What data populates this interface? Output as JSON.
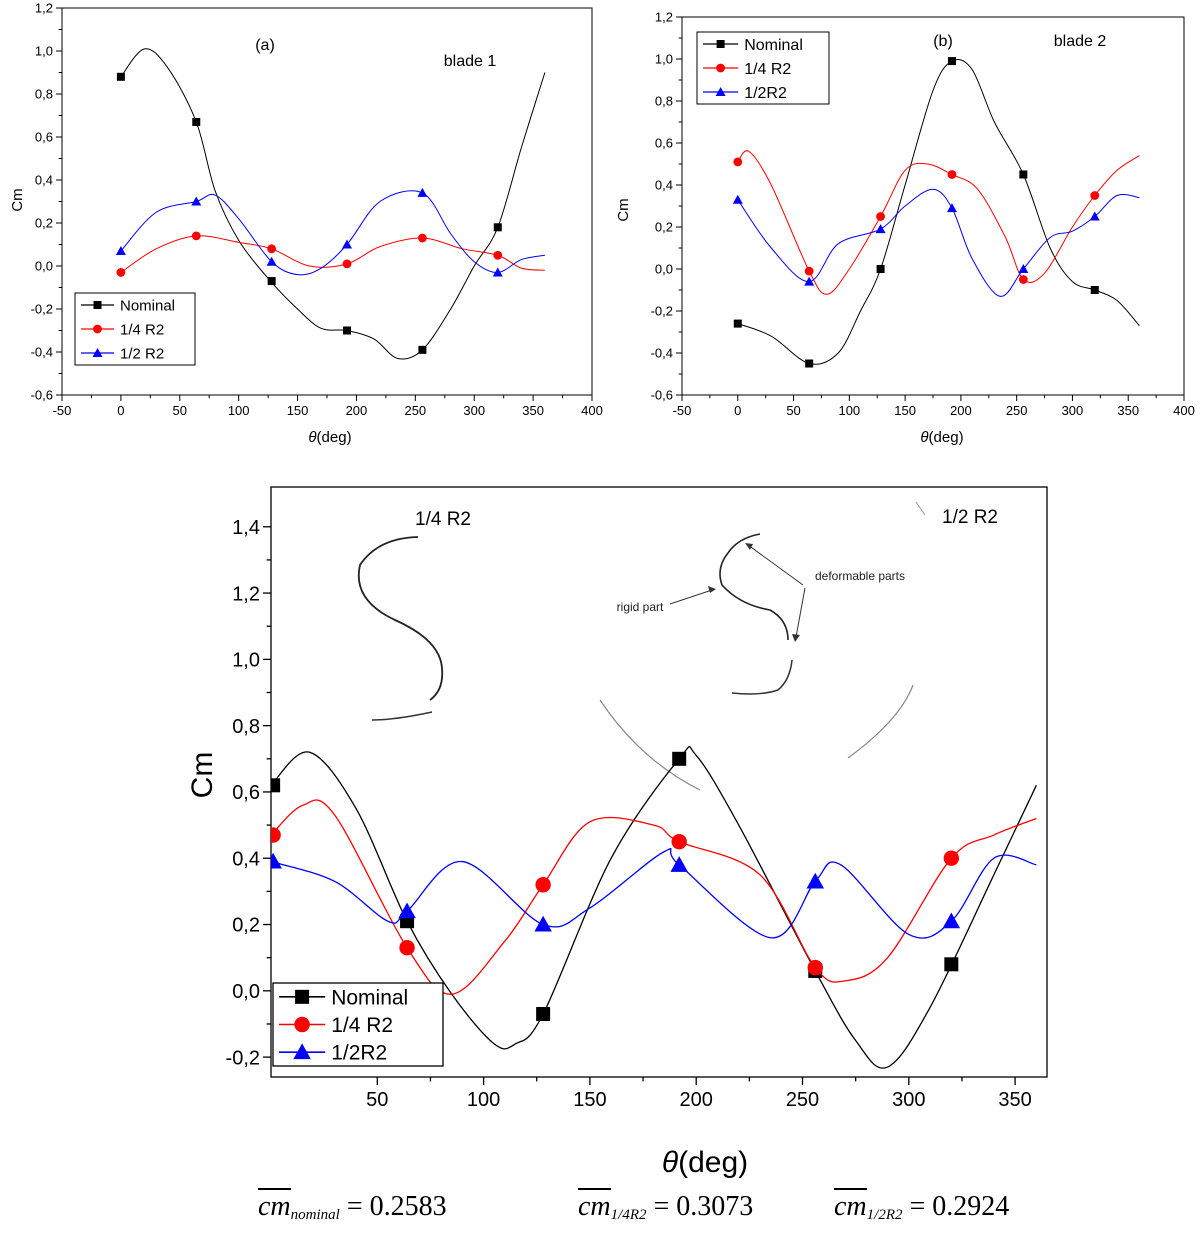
{
  "chart_data": [
    {
      "id": "a",
      "type": "line",
      "panel_label": "(a)",
      "annotation": "blade 1",
      "xlabel": "θ(deg)",
      "ylabel": "Cm",
      "xlim": [
        -50,
        400
      ],
      "ylim": [
        -0.6,
        1.2
      ],
      "xticks": [
        -50,
        0,
        50,
        100,
        150,
        200,
        250,
        300,
        350,
        400
      ],
      "yticks": [
        -0.6,
        -0.4,
        -0.2,
        0.0,
        0.2,
        0.4,
        0.6,
        0.8,
        1.0,
        1.2
      ],
      "tick_labels_x": [
        "-50",
        "0",
        "50",
        "100",
        "150",
        "200",
        "250",
        "300",
        "350",
        "400"
      ],
      "tick_labels_y": [
        "-0,6",
        "-0,4",
        "-0,2",
        "0,0",
        "0,2",
        "0,4",
        "0,6",
        "0,8",
        "1,0",
        "1,2"
      ],
      "legend_position": "bottom-left",
      "series": [
        {
          "name": "Nominal",
          "color": "#000000",
          "marker": "square",
          "x": [
            0,
            20,
            40,
            64,
            80,
            100,
            127,
            150,
            170,
            192,
            215,
            235,
            256,
            280,
            300,
            320,
            340,
            360
          ],
          "y": [
            0.88,
            1.01,
            0.92,
            0.67,
            0.35,
            0.12,
            -0.07,
            -0.2,
            -0.29,
            -0.3,
            -0.34,
            -0.43,
            -0.39,
            -0.2,
            0.0,
            0.18,
            0.55,
            0.9
          ],
          "markers_x": [
            0,
            64,
            128,
            192,
            256,
            320
          ],
          "markers_y": [
            0.88,
            0.67,
            -0.07,
            -0.3,
            -0.39,
            0.18
          ]
        },
        {
          "name": "1/4 R2",
          "color": "#ff0000",
          "marker": "circle",
          "x": [
            0,
            30,
            64,
            100,
            128,
            160,
            192,
            220,
            256,
            290,
            320,
            340,
            360
          ],
          "y": [
            -0.03,
            0.08,
            0.14,
            0.11,
            0.08,
            0.0,
            0.01,
            0.09,
            0.13,
            0.08,
            0.05,
            -0.01,
            -0.02
          ],
          "markers_x": [
            0,
            64,
            128,
            192,
            256,
            320
          ],
          "markers_y": [
            -0.03,
            0.14,
            0.08,
            0.01,
            0.13,
            0.05
          ]
        },
        {
          "name": "1/2 R2",
          "color": "#0000ff",
          "marker": "triangle",
          "x": [
            0,
            30,
            64,
            80,
            100,
            128,
            150,
            170,
            192,
            220,
            256,
            280,
            300,
            320,
            340,
            360
          ],
          "y": [
            0.07,
            0.25,
            0.3,
            0.33,
            0.22,
            0.02,
            -0.04,
            -0.01,
            0.1,
            0.3,
            0.34,
            0.15,
            0.02,
            -0.03,
            0.03,
            0.05
          ],
          "markers_x": [
            0,
            64,
            128,
            192,
            256,
            320
          ],
          "markers_y": [
            0.07,
            0.3,
            0.02,
            0.1,
            0.34,
            -0.03
          ]
        }
      ]
    },
    {
      "id": "b",
      "type": "line",
      "panel_label": "(b)",
      "annotation": "blade 2",
      "xlabel": "θ(deg)",
      "ylabel": "Cm",
      "xlim": [
        -50,
        400
      ],
      "ylim": [
        -0.6,
        1.2
      ],
      "xticks": [
        -50,
        0,
        50,
        100,
        150,
        200,
        250,
        300,
        350,
        400
      ],
      "yticks": [
        -0.6,
        -0.4,
        -0.2,
        0.0,
        0.2,
        0.4,
        0.6,
        0.8,
        1.0,
        1.2
      ],
      "tick_labels_x": [
        "-50",
        "0",
        "50",
        "100",
        "150",
        "200",
        "250",
        "300",
        "350",
        "400"
      ],
      "tick_labels_y": [
        "-0,6",
        "-0,4",
        "-0,2",
        "0,0",
        "0,2",
        "0,4",
        "0,6",
        "0,8",
        "1,0",
        "1,2"
      ],
      "legend_position": "top-left",
      "series": [
        {
          "name": "Nominal",
          "color": "#000000",
          "marker": "square",
          "x": [
            0,
            30,
            64,
            90,
            110,
            128,
            150,
            175,
            192,
            210,
            230,
            256,
            280,
            300,
            320,
            340,
            360
          ],
          "y": [
            -0.26,
            -0.32,
            -0.45,
            -0.4,
            -0.2,
            0.0,
            0.4,
            0.85,
            0.99,
            0.95,
            0.7,
            0.45,
            0.1,
            -0.06,
            -0.1,
            -0.15,
            -0.27
          ],
          "markers_x": [
            0,
            64,
            128,
            192,
            256,
            320
          ],
          "markers_y": [
            -0.26,
            -0.45,
            0.0,
            0.99,
            0.45,
            -0.1
          ]
        },
        {
          "name": "1/4 R2",
          "color": "#ff0000",
          "marker": "circle",
          "x": [
            0,
            10,
            30,
            64,
            80,
            100,
            128,
            150,
            170,
            192,
            215,
            240,
            256,
            275,
            300,
            320,
            340,
            360
          ],
          "y": [
            0.51,
            0.56,
            0.4,
            -0.01,
            -0.12,
            0.0,
            0.25,
            0.47,
            0.5,
            0.45,
            0.38,
            0.15,
            -0.05,
            -0.02,
            0.2,
            0.35,
            0.47,
            0.54
          ],
          "markers_x": [
            0,
            64,
            128,
            192,
            256,
            320
          ],
          "markers_y": [
            0.51,
            -0.01,
            0.25,
            0.45,
            -0.05,
            0.35
          ]
        },
        {
          "name": "1/2R2",
          "color": "#0000ff",
          "marker": "triangle",
          "x": [
            0,
            30,
            64,
            90,
            128,
            150,
            175,
            192,
            210,
            235,
            256,
            280,
            300,
            320,
            340,
            360
          ],
          "y": [
            0.33,
            0.1,
            -0.06,
            0.12,
            0.19,
            0.3,
            0.38,
            0.29,
            0.05,
            -0.13,
            0.0,
            0.15,
            0.18,
            0.25,
            0.35,
            0.34
          ],
          "markers_x": [
            0,
            64,
            128,
            192,
            256,
            320
          ],
          "markers_y": [
            0.33,
            -0.06,
            0.19,
            0.29,
            0.0,
            0.25
          ]
        }
      ]
    },
    {
      "id": "c",
      "type": "line",
      "xlabel": "θ(deg)",
      "ylabel": "Cm",
      "xlim": [
        0,
        365
      ],
      "ylim": [
        -0.26,
        1.52
      ],
      "xticks": [
        50,
        100,
        150,
        200,
        250,
        300,
        350
      ],
      "yticks": [
        -0.2,
        0.0,
        0.2,
        0.4,
        0.6,
        0.8,
        1.0,
        1.2,
        1.4
      ],
      "tick_labels_x": [
        "50",
        "100",
        "150",
        "200",
        "250",
        "300",
        "350"
      ],
      "tick_labels_y": [
        "-0,2",
        "0,0",
        "0,2",
        "0,4",
        "0,6",
        "0,8",
        "1,0",
        "1,2",
        "1,4"
      ],
      "legend_position": "bottom-left",
      "inset_labels": {
        "left": "1/4 R2",
        "right": "1/2 R2",
        "deformable": "deformable parts",
        "rigid": "rigid part"
      },
      "series": [
        {
          "name": "Nominal",
          "color": "#000000",
          "marker": "square",
          "x": [
            0,
            18,
            40,
            64,
            85,
            105,
            115,
            128,
            160,
            192,
            200,
            220,
            256,
            275,
            290,
            310,
            340,
            360
          ],
          "y": [
            0.62,
            0.72,
            0.55,
            0.21,
            -0.01,
            -0.16,
            -0.16,
            -0.07,
            0.4,
            0.7,
            0.71,
            0.5,
            0.06,
            -0.15,
            -0.23,
            -0.05,
            0.35,
            0.62
          ],
          "markers_x": [
            1,
            64,
            128,
            192,
            256,
            320
          ],
          "markers_y": [
            0.62,
            0.21,
            -0.07,
            0.7,
            0.06,
            0.08
          ]
        },
        {
          "name": "1/4 R2",
          "color": "#ff0000",
          "marker": "circle",
          "x": [
            0,
            15,
            30,
            64,
            85,
            110,
            128,
            150,
            180,
            192,
            230,
            256,
            270,
            290,
            320,
            340,
            360
          ],
          "y": [
            0.47,
            0.56,
            0.53,
            0.13,
            -0.01,
            0.15,
            0.32,
            0.51,
            0.5,
            0.45,
            0.35,
            0.07,
            0.03,
            0.1,
            0.4,
            0.47,
            0.52
          ],
          "markers_x": [
            1,
            64,
            128,
            192,
            256,
            320
          ],
          "markers_y": [
            0.47,
            0.13,
            0.32,
            0.45,
            0.07,
            0.4
          ]
        },
        {
          "name": "1/2R2",
          "color": "#0000ff",
          "marker": "triangle",
          "x": [
            0,
            30,
            55,
            64,
            90,
            128,
            150,
            185,
            192,
            235,
            256,
            268,
            300,
            320,
            340,
            360
          ],
          "y": [
            0.39,
            0.33,
            0.21,
            0.24,
            0.39,
            0.2,
            0.25,
            0.42,
            0.38,
            0.16,
            0.33,
            0.38,
            0.17,
            0.21,
            0.4,
            0.38
          ],
          "markers_x": [
            1,
            64,
            128,
            192,
            256,
            320
          ],
          "markers_y": [
            0.39,
            0.24,
            0.2,
            0.38,
            0.33,
            0.21
          ]
        }
      ]
    }
  ],
  "equations": {
    "nominal": {
      "symbol": "cm",
      "subscript": "nominal",
      "value": "= 0.2583"
    },
    "quarter": {
      "symbol": "cm",
      "subscript": "1/4R2",
      "value": "= 0.3073"
    },
    "half": {
      "symbol": "cm",
      "subscript": "1/2R2",
      "value": "= 0.2924"
    }
  }
}
